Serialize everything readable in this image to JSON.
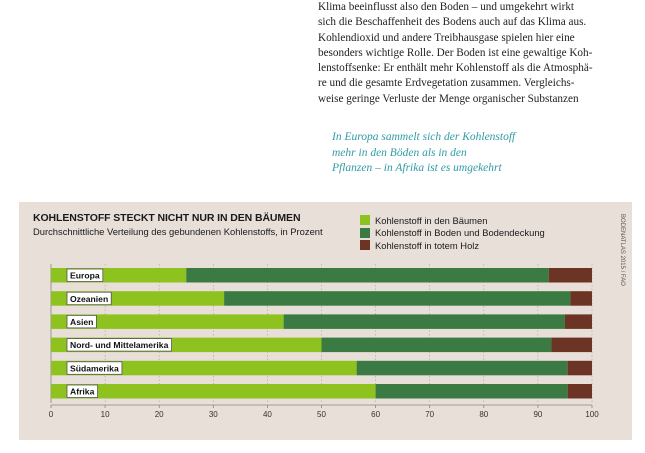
{
  "article": {
    "body_lines": [
      "Klima beeinflusst also den Boden – und umgekehrt wirkt",
      "sich die Beschaffenheit des Bodens auch auf das Klima aus.",
      "Kohlendioxid und andere Treibhausgase spielen hier eine",
      "besonders wichtige Rolle. Der Boden ist eine gewaltige Koh-",
      "lenstoffsenke: Er enthält mehr Kohlenstoff als die Atmosphä-",
      "re und die gesamte Erdvegetation zusammen. Vergleichs-",
      "weise geringe Verluste der Menge organischer Substanzen"
    ],
    "pull_quote_lines": [
      "In Europa sammelt sich der Kohlenstoff",
      "mehr in den Böden als in den",
      "Pflanzen – in Afrika ist es umgekehrt"
    ]
  },
  "source_label": "BODENATLAS 2015 / FAO",
  "colors": {
    "trees": "#8dc21f",
    "soil": "#3b7a43",
    "deadwood": "#6b3424",
    "panel": "#e8dfd9",
    "quote": "#2f9ba5"
  },
  "chart_data": {
    "type": "bar",
    "orientation": "horizontal",
    "stacked": true,
    "title": "KOHLENSTOFF STECKT NICHT NUR IN DEN BÄUMEN",
    "subtitle": "Durchschnittliche Verteilung des gebundenen Kohlenstoffs, in Prozent",
    "categories": [
      "Europa",
      "Ozeanien",
      "Asien",
      "Nord- und Mittelamerika",
      "Südamerika",
      "Afrika"
    ],
    "series": [
      {
        "name": "Kohlenstoff in den Bäumen",
        "color": "#8dc21f",
        "values": [
          25,
          32,
          43,
          50,
          56.5,
          60
        ]
      },
      {
        "name": "Kohlenstoff in Boden und Bodendeckung",
        "color": "#3b7a43",
        "values": [
          67,
          64,
          52,
          42.5,
          39,
          35.5
        ]
      },
      {
        "name": "Kohlenstoff in totem Holz",
        "color": "#6b3424",
        "values": [
          8,
          4,
          5,
          7.5,
          4.5,
          4.5
        ]
      }
    ],
    "xlim": [
      0,
      100
    ],
    "xticks": [
      0,
      10,
      20,
      30,
      40,
      50,
      60,
      70,
      80,
      90,
      100
    ],
    "grid": true,
    "legend_position": "top-right"
  }
}
